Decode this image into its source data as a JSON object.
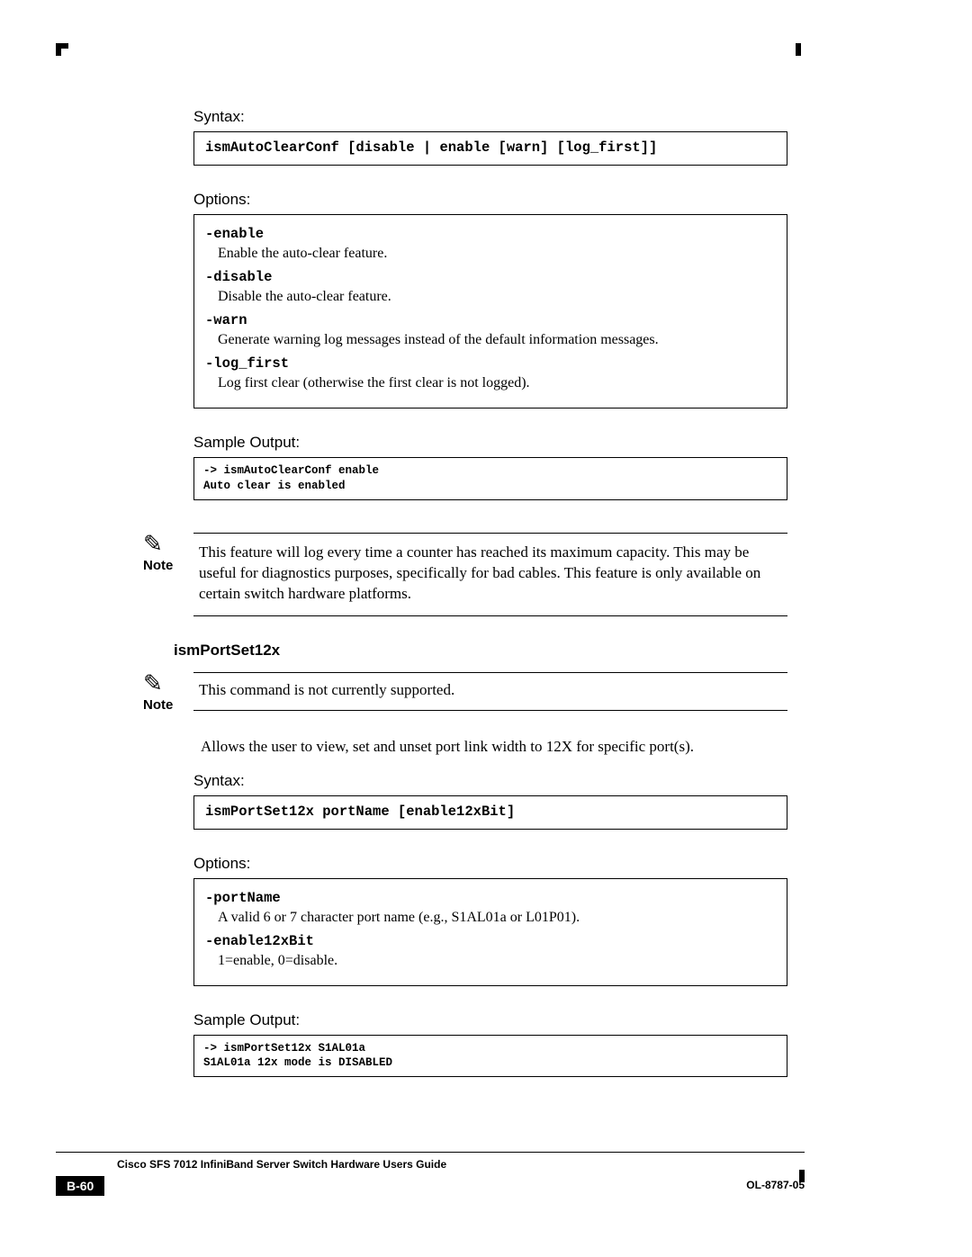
{
  "s1": {
    "syntaxLabel": "Syntax:",
    "syntax": "ismAutoClearConf [disable | enable [warn] [log_first]]",
    "optionsLabel": "Options:",
    "opts": [
      {
        "name": "-enable",
        "desc": "Enable the auto-clear feature."
      },
      {
        "name": "-disable",
        "desc": "Disable the auto-clear feature."
      },
      {
        "name": "-warn",
        "desc": "Generate warning log messages instead of the default information messages."
      },
      {
        "name": "-log_first",
        "desc": "Log first clear (otherwise the first clear is not logged)."
      }
    ],
    "sampleLabel": "Sample Output:",
    "sample": "-> ismAutoClearConf enable\nAuto clear is enabled"
  },
  "note1": {
    "label": "Note",
    "text": "This feature will log every time a counter has reached its maximum capacity. This may be useful for diagnostics purposes, specifically for bad cables. This feature is only available on certain switch hardware platforms."
  },
  "s2head": "ismPortSet12x",
  "note2": {
    "label": "Note",
    "text": "This command is not currently supported."
  },
  "s2para": "Allows the user to view, set and unset port link width to 12X for specific port(s).",
  "s2": {
    "syntaxLabel": "Syntax:",
    "syntax": "ismPortSet12x portName [enable12xBit]",
    "optionsLabel": "Options:",
    "opts": [
      {
        "name": "-portName",
        "desc": "A valid 6 or 7 character port name (e.g., S1AL01a or L01P01)."
      },
      {
        "name": "-enable12xBit",
        "desc": "1=enable, 0=disable."
      }
    ],
    "sampleLabel": "Sample Output:",
    "sample": "-> ismPortSet12x S1AL01a\nS1AL01a 12x mode is DISABLED"
  },
  "footer": {
    "title": "Cisco SFS 7012 InfiniBand Server Switch Hardware Users Guide",
    "page": "B-60",
    "docid": "OL-8787-05"
  }
}
